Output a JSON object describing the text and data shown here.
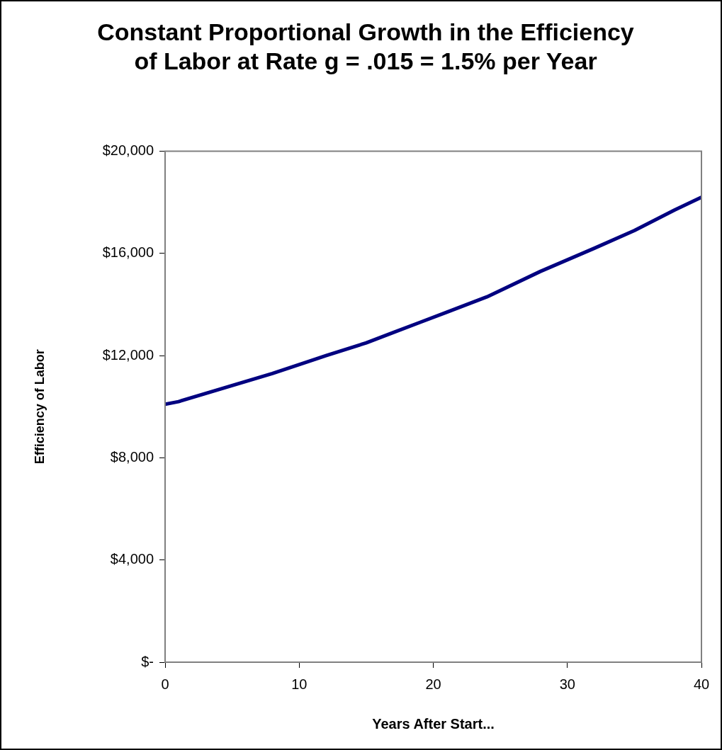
{
  "chart_data": {
    "type": "line",
    "title": "Constant Proportional Growth in the Efficiency of Labor at Rate g = .015 = 1.5% per Year",
    "xlabel": "Years After Start...",
    "ylabel": "Efficiency of Labor",
    "x": [
      0,
      1,
      8,
      12,
      15,
      17,
      19,
      21,
      24,
      28,
      32,
      35,
      38,
      40
    ],
    "series": [
      {
        "color": "#000080",
        "values": [
          10100,
          10200,
          11300,
          12000,
          12500,
          12900,
          13300,
          13700,
          14300,
          15300,
          16200,
          16900,
          17700,
          18200
        ]
      }
    ],
    "xlim": [
      0,
      40
    ],
    "xticks": [
      0,
      10,
      20,
      30,
      40
    ],
    "ylim": [
      0,
      20000
    ],
    "yticks": [
      {
        "value": 0,
        "label": "$-"
      },
      {
        "value": 4000,
        "label": "$4,000"
      },
      {
        "value": 8000,
        "label": "$8,000"
      },
      {
        "value": 12000,
        "label": "$12,000"
      },
      {
        "value": 16000,
        "label": "$16,000"
      },
      {
        "value": 20000,
        "label": "$20,000"
      }
    ],
    "grid": false,
    "legend": false,
    "marker": "none",
    "line_style": "solid"
  }
}
